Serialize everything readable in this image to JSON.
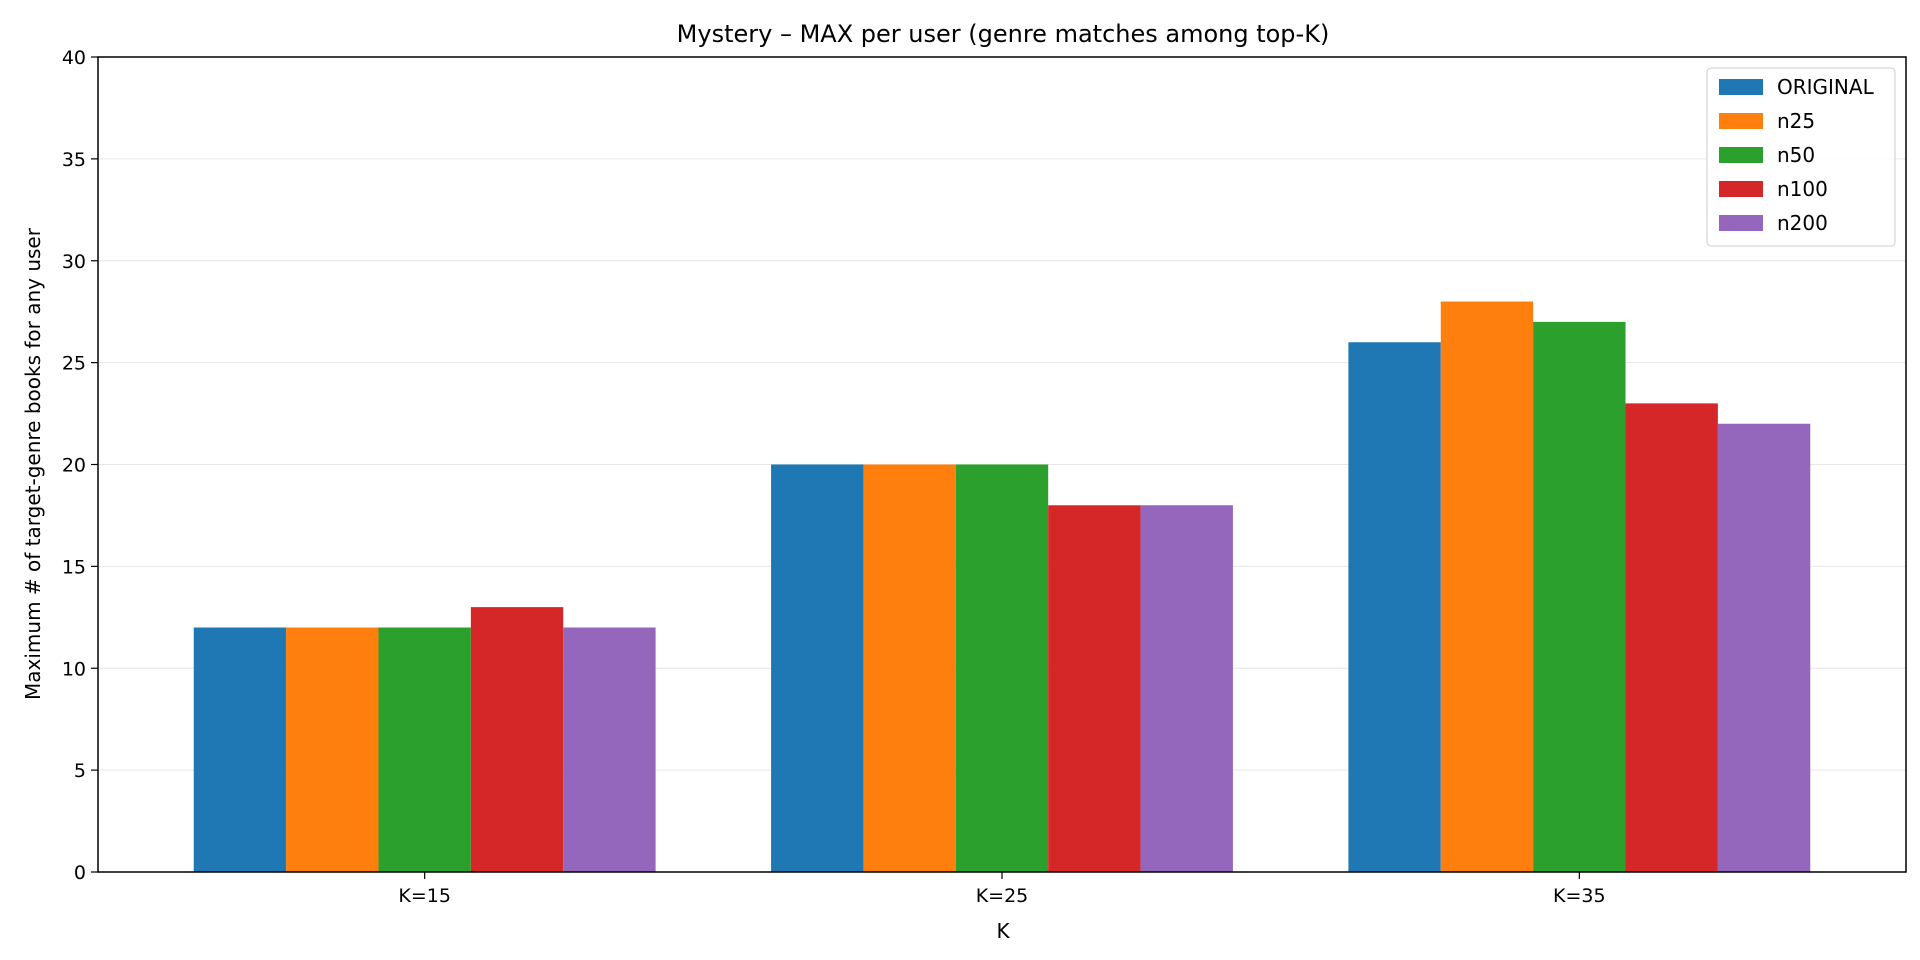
{
  "chart_data": {
    "type": "bar",
    "title": "Mystery – MAX per user (genre matches among top-K)",
    "xlabel": "K",
    "ylabel": "Maximum # of target-genre books for any user",
    "categories": [
      "K=15",
      "K=25",
      "K=35"
    ],
    "ylim": [
      0,
      40
    ],
    "yticks": [
      0,
      5,
      10,
      15,
      20,
      25,
      30,
      35,
      40
    ],
    "grid": "horizontal",
    "legend_position": "top-right",
    "series": [
      {
        "name": "ORIGINAL",
        "color": "#1f77b4",
        "values": [
          12,
          20,
          26
        ]
      },
      {
        "name": "n25",
        "color": "#ff7f0e",
        "values": [
          12,
          20,
          28
        ]
      },
      {
        "name": "n50",
        "color": "#2ca02c",
        "values": [
          12,
          20,
          27
        ]
      },
      {
        "name": "n100",
        "color": "#d62728",
        "values": [
          13,
          18,
          23
        ]
      },
      {
        "name": "n200",
        "color": "#9467bd",
        "values": [
          12,
          18,
          22
        ]
      }
    ]
  }
}
